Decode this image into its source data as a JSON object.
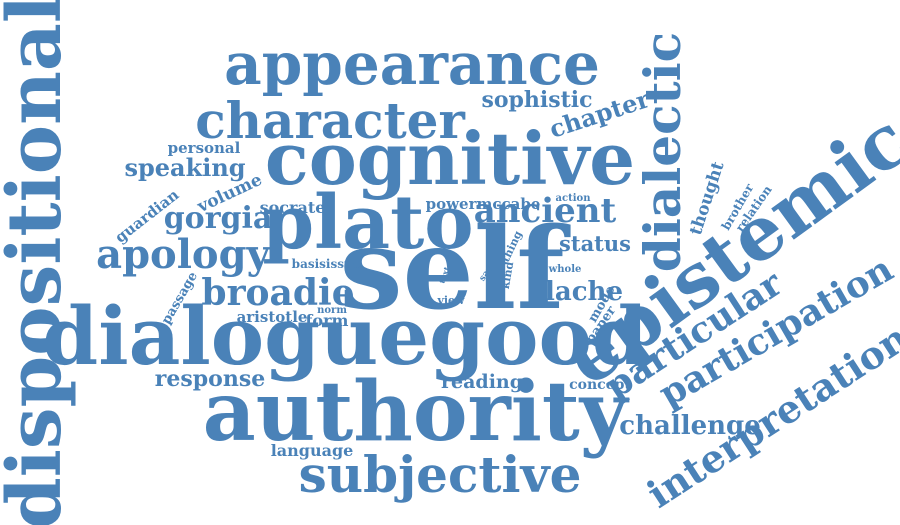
{
  "color": "#4a82b8",
  "words": [
    {
      "text": "dispositional",
      "size": 74,
      "rotate": -90
    },
    {
      "text": "appearance",
      "size": 58,
      "rotate": 0
    },
    {
      "text": "character",
      "size": 50,
      "rotate": 0
    },
    {
      "text": "cognitive",
      "size": 72,
      "rotate": 0
    },
    {
      "text": "dialectic",
      "size": 50,
      "rotate": -90
    },
    {
      "text": "epistemic",
      "size": 74,
      "rotate": -36
    },
    {
      "text": "plato",
      "size": 74,
      "rotate": 0
    },
    {
      "text": "self",
      "size": 112,
      "rotate": 0
    },
    {
      "text": "dialoguegood",
      "size": 80,
      "rotate": 0
    },
    {
      "text": "authority",
      "size": 82,
      "rotate": 0
    },
    {
      "text": "subjective",
      "size": 50,
      "rotate": 0
    },
    {
      "text": "interpretation",
      "size": 38,
      "rotate": -33
    },
    {
      "text": "participation",
      "size": 36,
      "rotate": -30
    },
    {
      "text": "particular",
      "size": 36,
      "rotate": -33
    },
    {
      "text": "challenge",
      "size": 26,
      "rotate": 0
    },
    {
      "text": "ancient",
      "size": 34,
      "rotate": 0
    },
    {
      "text": "apology",
      "size": 40,
      "rotate": 0
    },
    {
      "text": "broadie",
      "size": 36,
      "rotate": 0
    },
    {
      "text": "gorgia",
      "size": 30,
      "rotate": 0
    },
    {
      "text": "speaking",
      "size": 24,
      "rotate": 0
    },
    {
      "text": "sophistic",
      "size": 22,
      "rotate": 0
    },
    {
      "text": "chapter",
      "size": 24,
      "rotate": -18
    },
    {
      "text": "response",
      "size": 22,
      "rotate": 0
    },
    {
      "text": "reading",
      "size": 19,
      "rotate": 0
    },
    {
      "text": "language",
      "size": 16,
      "rotate": 0
    },
    {
      "text": "status",
      "size": 21,
      "rotate": 0
    },
    {
      "text": "lache",
      "size": 26,
      "rotate": 0
    },
    {
      "text": "volume",
      "size": 17,
      "rotate": -25
    },
    {
      "text": "guardian",
      "size": 15,
      "rotate": -38
    },
    {
      "text": "personal",
      "size": 15,
      "rotate": 0
    },
    {
      "text": "socrates",
      "size": 16,
      "rotate": 0
    },
    {
      "text": "powermccabe",
      "size": 15,
      "rotate": 0
    },
    {
      "text": "action",
      "size": 10,
      "rotate": 0
    },
    {
      "text": "thought",
      "size": 17,
      "rotate": -72
    },
    {
      "text": "brother",
      "size": 12,
      "rotate": -60
    },
    {
      "text": "relation",
      "size": 12,
      "rotate": -55
    },
    {
      "text": "basisissue",
      "size": 12,
      "rotate": 0
    },
    {
      "text": "aristotle",
      "size": 15,
      "rotate": 0
    },
    {
      "text": "passage",
      "size": 13,
      "rotate": -60
    },
    {
      "text": "norm",
      "size": 10,
      "rotate": 0
    },
    {
      "text": "form",
      "size": 16,
      "rotate": 0
    },
    {
      "text": "thing",
      "size": 11,
      "rotate": -65
    },
    {
      "text": "kind",
      "size": 11,
      "rotate": -80
    },
    {
      "text": "say",
      "size": 9,
      "rotate": -55
    },
    {
      "text": "text",
      "size": 8,
      "rotate": -70
    },
    {
      "text": "view",
      "size": 11,
      "rotate": 0
    },
    {
      "text": "whole",
      "size": 10,
      "rotate": 0
    },
    {
      "text": "mode",
      "size": 13,
      "rotate": -60
    },
    {
      "text": "paper",
      "size": 13,
      "rotate": -55
    },
    {
      "text": "concept",
      "size": 14,
      "rotate": 0
    }
  ]
}
